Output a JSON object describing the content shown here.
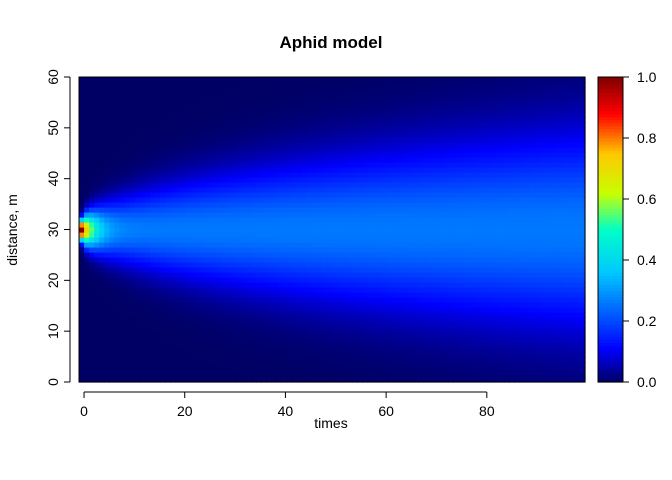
{
  "chart_data": {
    "type": "heatmap",
    "title": "Aphid model",
    "xlabel": "times",
    "ylabel": "distance, m",
    "xlim": [
      0,
      100
    ],
    "ylim": [
      0,
      60
    ],
    "x_ticks": [
      "0",
      "20",
      "40",
      "60",
      "80"
    ],
    "y_ticks": [
      "0",
      "10",
      "20",
      "30",
      "40",
      "50",
      "60"
    ],
    "x_tick_values": [
      0,
      20,
      40,
      60,
      80
    ],
    "y_tick_values": [
      0,
      10,
      20,
      30,
      40,
      50,
      60
    ],
    "colorbar": {
      "ticks": [
        "0.0",
        "0.2",
        "0.4",
        "0.6",
        "0.8",
        "1.0"
      ],
      "tick_values": [
        0,
        0.2,
        0.4,
        0.6,
        0.8,
        1.0
      ],
      "range": [
        0,
        1
      ],
      "palette": "jet"
    },
    "grid": false,
    "field": {
      "description_values": "density peaks at distance 30 m at time 0 and spreads over time",
      "center": 30,
      "initial_peak": 1.0,
      "time_min": 0,
      "time_max": 99,
      "distance_min": 0,
      "distance_max": 60
    }
  }
}
